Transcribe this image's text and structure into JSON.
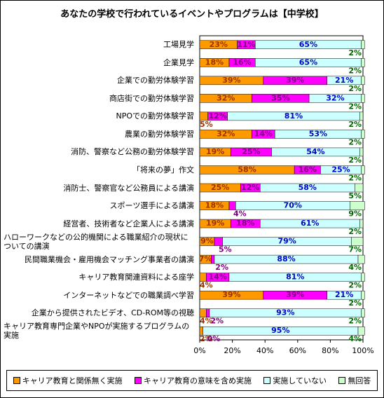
{
  "chart_data": {
    "type": "stacked-bar-horizontal",
    "title": "あなたの学校で行われているイベントやプログラムは【中学校】",
    "categories": [
      "工場見学",
      "企業見学",
      "企業での勤労体験学習",
      "商店街での勤労体験学習",
      "NPOでの勤労体験学習",
      "農業の勤労体験学習",
      "消防、警察など公務の勤労体験学習",
      "「将来の夢」作文",
      "消防士、警察官など公務員による講演",
      "スポーツ選手による講演",
      "経営者、技術者など企業人による講演",
      "ハローワークなどの公的機関による職業紹介の現状についての講演",
      "民間職業機会・雇用機会マッチング事業者の講演",
      "キャリア教育関連資料による座学",
      "インターネットなどでの職業調べ学習",
      "企業から提供されたビデオ、CD-ROM等の視聴",
      "キャリア教育専門企業やNPOが実施するプログラムの実施"
    ],
    "series": [
      {
        "name": "キャリア教育と関係無く実施",
        "color": "#ff9900",
        "label_color": "#993300",
        "values": [
          23,
          18,
          39,
          32,
          5,
          32,
          19,
          58,
          25,
          18,
          19,
          9,
          7,
          4,
          39,
          4,
          2
        ],
        "value_labels": [
          "23%",
          "18%",
          "39%",
          "32%",
          "5%",
          "32%",
          "19%",
          "58%",
          "25%",
          "18%",
          "19%",
          "9%",
          "7%",
          "4%",
          "39%",
          "4%",
          "2%"
        ]
      },
      {
        "name": "キャリア教育の意味を含め実施",
        "color": "#ff00ff",
        "label_color": "#800080",
        "values": [
          11,
          16,
          39,
          35,
          12,
          14,
          25,
          16,
          12,
          4,
          18,
          5,
          2,
          14,
          39,
          2,
          0
        ],
        "value_labels": [
          "11%",
          "16%",
          "39%",
          "35%",
          "12%",
          "14%",
          "25%",
          "16%",
          "12%",
          "4%",
          "18%",
          "5%",
          "2%",
          "14%",
          "39%",
          "2%",
          "0%"
        ]
      },
      {
        "name": "実施していない",
        "color": "#ccffff",
        "label_color": "#0000cc",
        "values": [
          65,
          65,
          21,
          32,
          81,
          53,
          54,
          25,
          58,
          70,
          61,
          79,
          88,
          81,
          21,
          93,
          95
        ],
        "value_labels": [
          "65%",
          "65%",
          "21%",
          "32%",
          "81%",
          "53%",
          "54%",
          "25%",
          "58%",
          "70%",
          "61%",
          "79%",
          "88%",
          "81%",
          "21%",
          "93%",
          "95%"
        ]
      },
      {
        "name": "無回答",
        "color": "#ccffcc",
        "label_color": "#006600",
        "values": [
          2,
          2,
          2,
          2,
          2,
          2,
          2,
          2,
          5,
          9,
          2,
          7,
          4,
          2,
          2,
          2,
          4
        ],
        "value_labels": [
          "2%",
          "2%",
          "2%",
          "2%",
          "2%",
          "2%",
          "2%",
          "2%",
          "5%",
          "9%",
          "2%",
          "7%",
          "4%",
          "2%",
          "2%",
          "2%",
          "4%"
        ]
      }
    ],
    "xlim": [
      0,
      100
    ],
    "xticks": [
      {
        "value": 0,
        "label": "0%"
      },
      {
        "value": 20,
        "label": "20%"
      },
      {
        "value": 40,
        "label": "40%"
      },
      {
        "value": 60,
        "label": "60%"
      },
      {
        "value": 80,
        "label": "80%"
      },
      {
        "value": 100,
        "label": "100%"
      }
    ],
    "grid": false
  }
}
